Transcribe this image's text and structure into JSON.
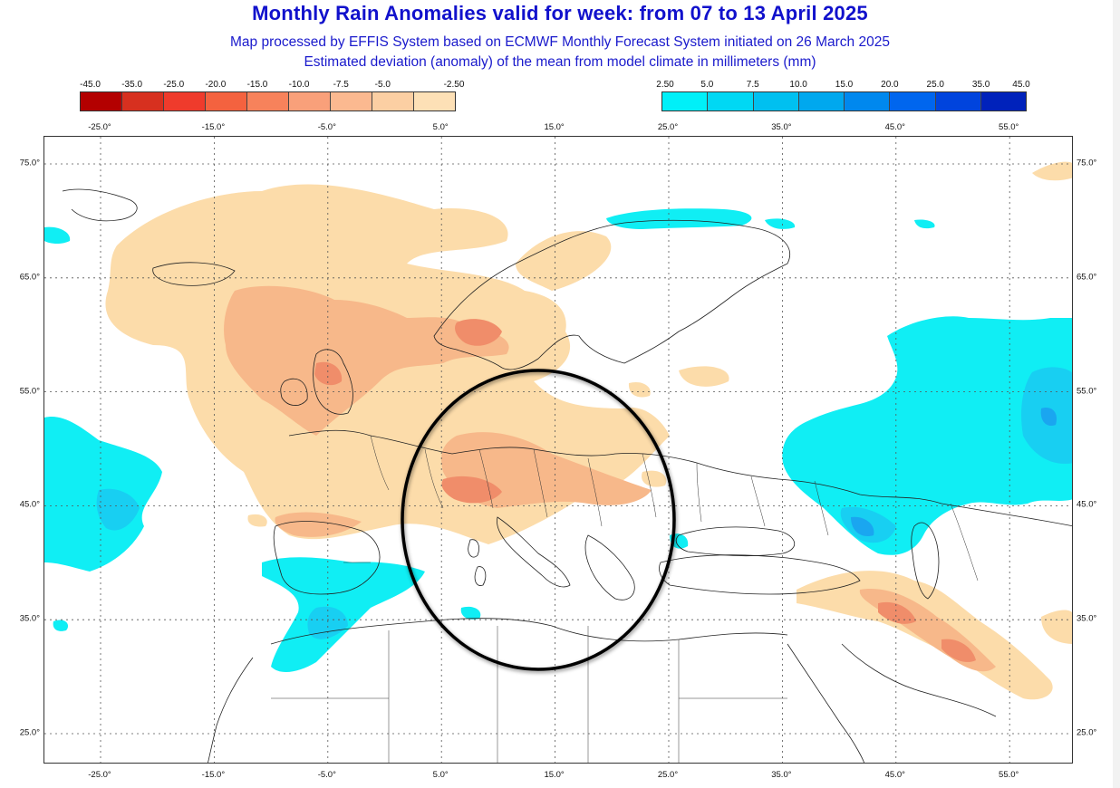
{
  "header": {
    "title": "Monthly Rain Anomalies valid for week: from 07 to 13 April 2025",
    "subtitle1": "Map processed by EFFIS System based on ECMWF Monthly Forecast System initiated on 26 March 2025",
    "subtitle2": "Estimated deviation (anomaly) of the mean from model climate in millimeters (mm)"
  },
  "legend_dry": {
    "ticks": [
      "-45.0",
      "-35.0",
      "-25.0",
      "-20.0",
      "-15.0",
      "-10.0",
      "-7.5",
      "-5.0",
      "-2.50"
    ],
    "colors": [
      "#b30000",
      "#d7301f",
      "#ef3b2c",
      "#f4623f",
      "#f7825b",
      "#f9a07a",
      "#fbb990",
      "#fccfa3",
      "#fde0b6"
    ]
  },
  "legend_wet": {
    "ticks": [
      "2.50",
      "5.0",
      "7.5",
      "10.0",
      "15.0",
      "20.0",
      "25.0",
      "35.0",
      "45.0"
    ],
    "colors": [
      "#00f0f8",
      "#00d8f4",
      "#00c0f0",
      "#00a8ee",
      "#0088ee",
      "#0066ee",
      "#0044dd",
      "#0022bb"
    ]
  },
  "axes": {
    "lon_top": [
      "-25.0°",
      "-15.0°",
      "-5.0°",
      "5.0°",
      "15.0°",
      "25.0°",
      "35.0°",
      "45.0°",
      "55.0°"
    ],
    "lon_bottom": [
      "-25.0°",
      "-15.0°",
      "-5.0°",
      "5.0°",
      "15.0°",
      "25.0°",
      "35.0°",
      "45.0°",
      "55.0°"
    ],
    "lat_left": [
      "75.0°",
      "65.0°",
      "55.0°",
      "45.0°",
      "35.0°",
      "25.0°"
    ],
    "lat_right": [
      "75.0°",
      "65.0°",
      "55.0°",
      "45.0°",
      "35.0°",
      "25.0°"
    ]
  },
  "map_colors": {
    "dry_light": "#fcdcaa",
    "dry_mid": "#f7b88a",
    "dry_strong": "#f08d6a",
    "wet_light": "#10eef4",
    "wet_mid": "#18cff2",
    "wet_strong": "#1aa6f0"
  },
  "annotation": {
    "shape": "circle-outline",
    "color": "#000000"
  }
}
